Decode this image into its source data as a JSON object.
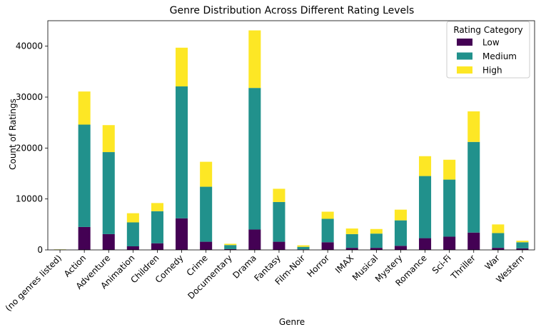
{
  "chart_data": {
    "type": "bar",
    "stacked": true,
    "title": "Genre Distribution Across Different Rating Levels",
    "xlabel": "Genre",
    "ylabel": "Count of Ratings",
    "ylim": [
      0,
      45000
    ],
    "yticks": [
      0,
      10000,
      20000,
      30000,
      40000
    ],
    "grid": false,
    "legend": {
      "title": "Rating Category",
      "placement": "top-right"
    },
    "categories": [
      "(no genres listed)",
      "Action",
      "Adventure",
      "Animation",
      "Children",
      "Comedy",
      "Crime",
      "Documentary",
      "Drama",
      "Fantasy",
      "Film-Noir",
      "Horror",
      "IMAX",
      "Musical",
      "Mystery",
      "Romance",
      "Sci-Fi",
      "Thriller",
      "War",
      "Western"
    ],
    "series": [
      {
        "name": "Low",
        "color": "#440154",
        "values": [
          15,
          4500,
          3100,
          700,
          1300,
          6200,
          1600,
          150,
          4000,
          1600,
          100,
          1500,
          400,
          400,
          800,
          2300,
          2600,
          3400,
          400,
          300
        ]
      },
      {
        "name": "Medium",
        "color": "#21918c",
        "values": [
          50,
          20100,
          16100,
          4700,
          6300,
          25900,
          10800,
          800,
          27800,
          7800,
          500,
          4600,
          2700,
          2800,
          5000,
          12200,
          11200,
          17800,
          2900,
          1200
        ]
      },
      {
        "name": "High",
        "color": "#fde725",
        "values": [
          35,
          6500,
          5300,
          1800,
          1600,
          7600,
          4900,
          250,
          11300,
          2600,
          300,
          1400,
          1100,
          900,
          2100,
          3900,
          3900,
          6000,
          1700,
          300
        ]
      }
    ]
  }
}
